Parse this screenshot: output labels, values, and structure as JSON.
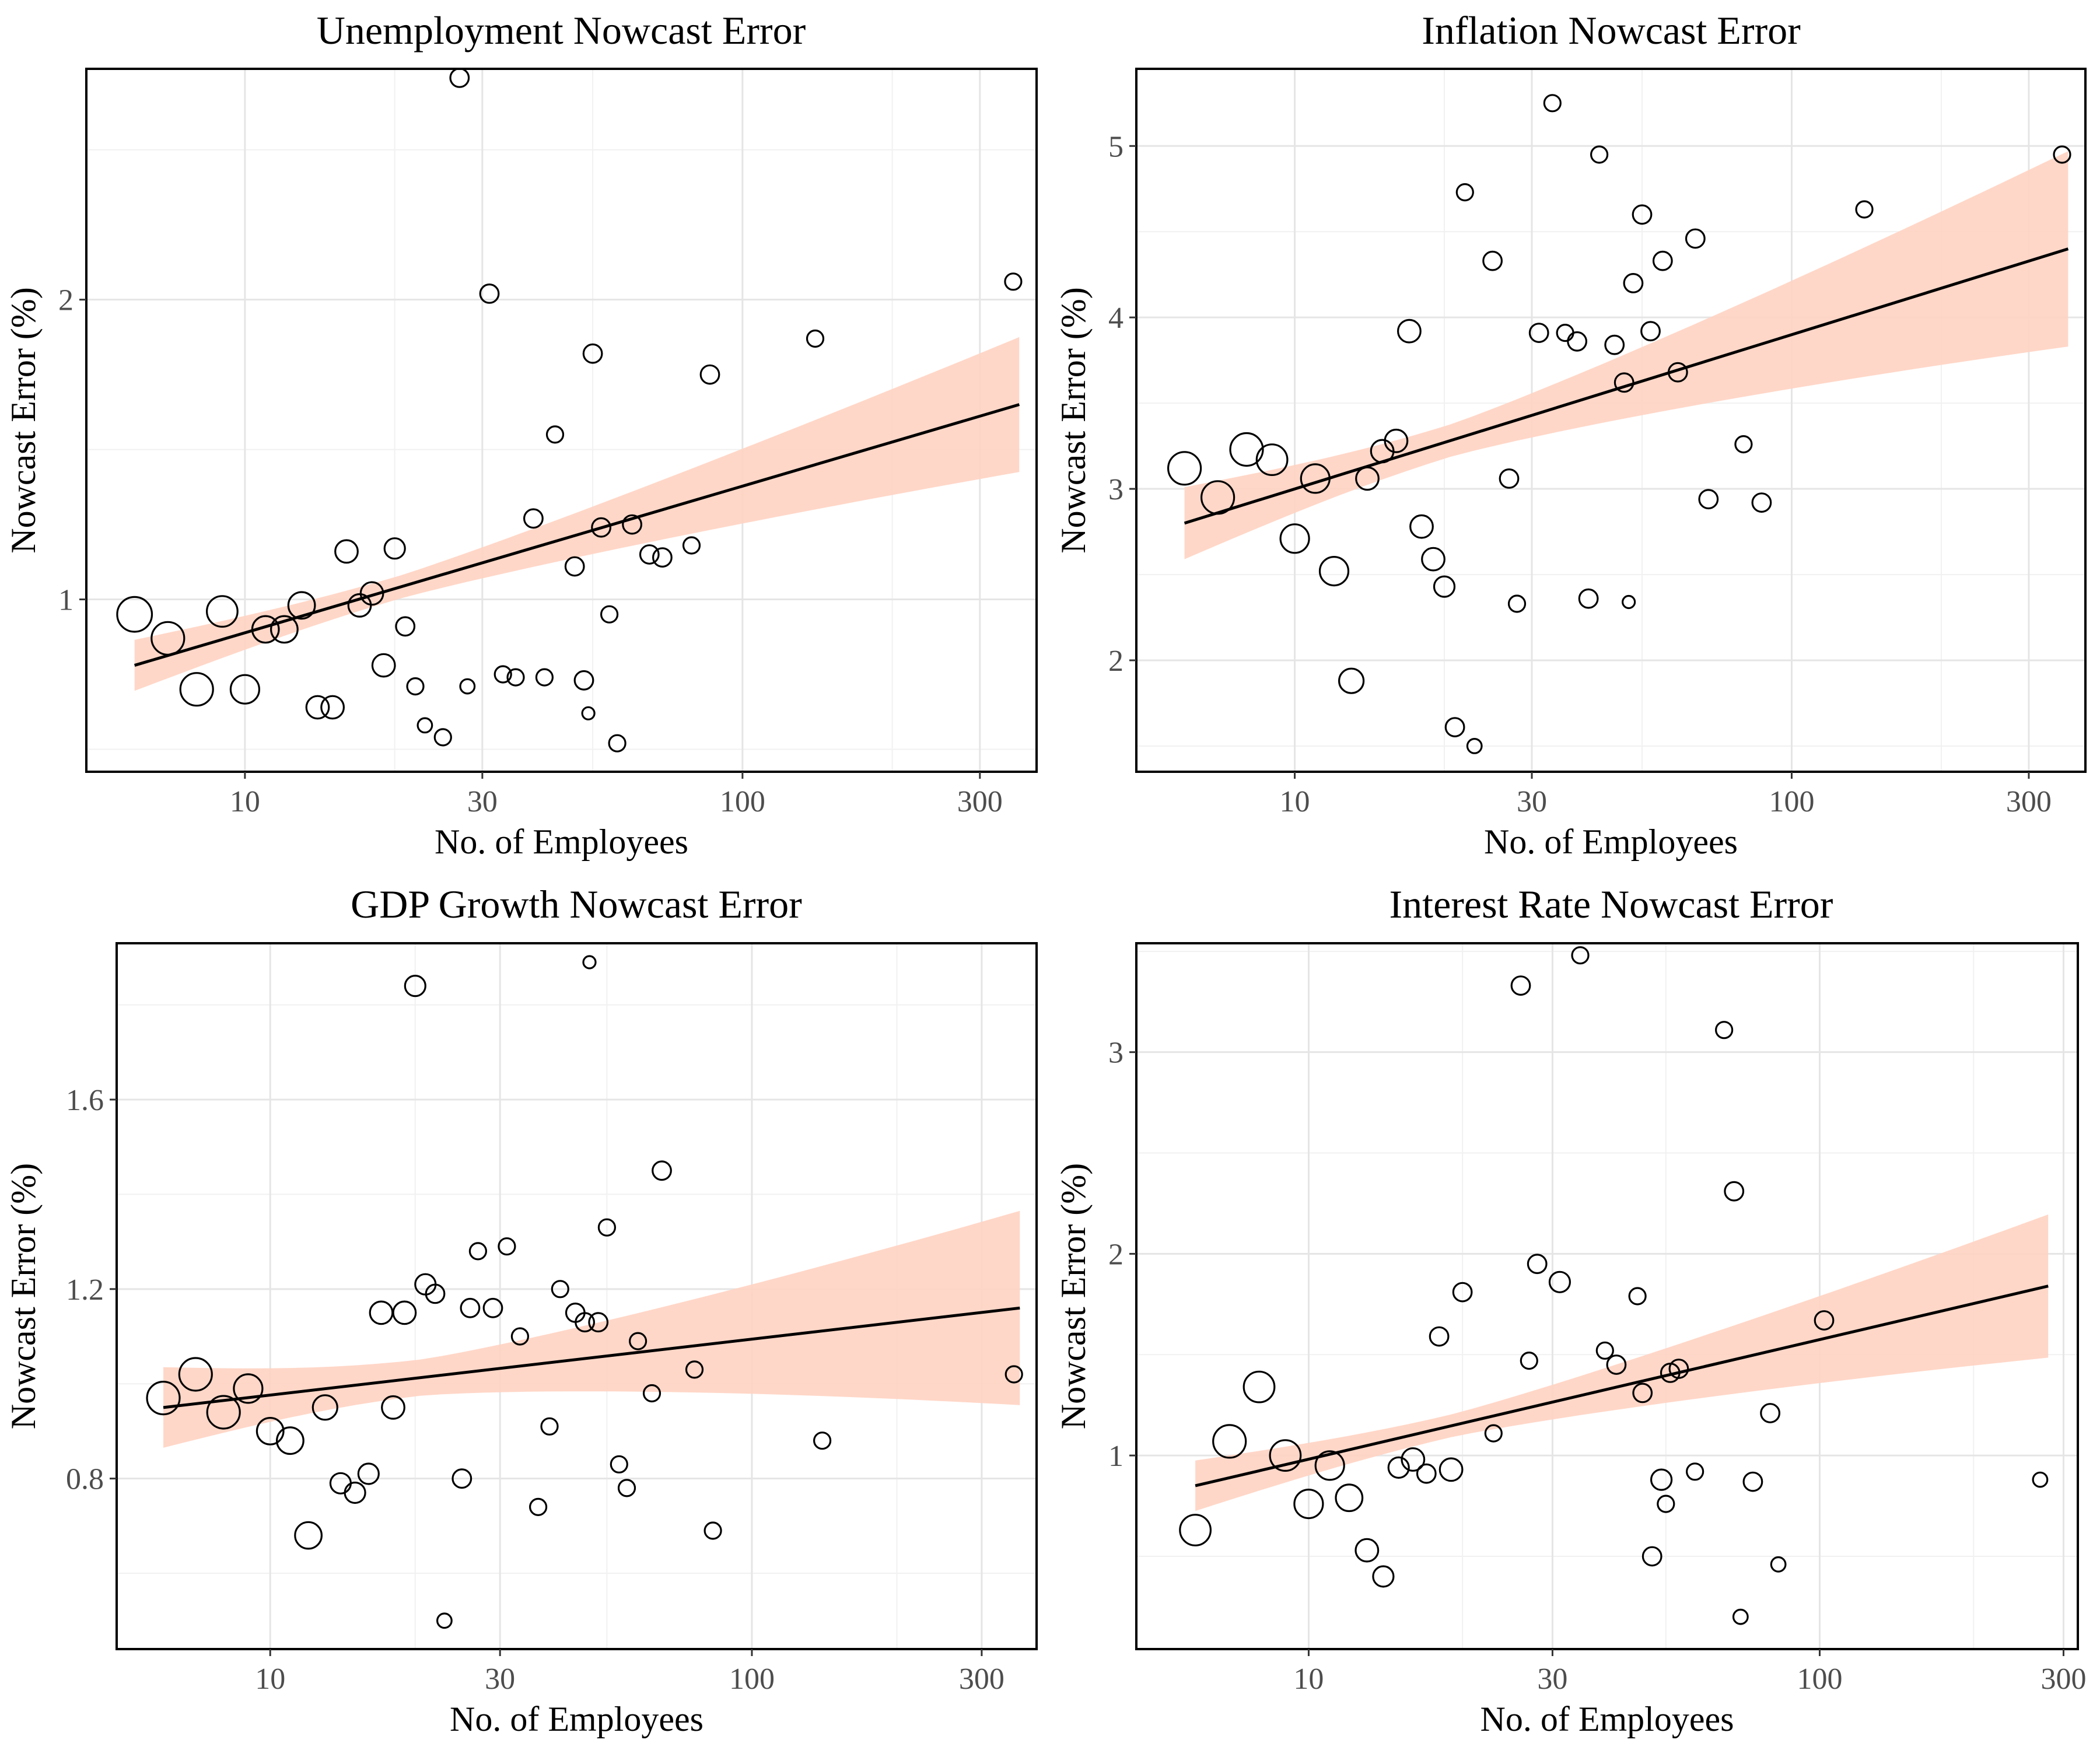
{
  "figure": {
    "log_minor_label": "log-x minor gridlines at 3, 20, 50, 200"
  },
  "colors": {
    "band": "#ffd3c2",
    "line": "#000000",
    "grid": "#e5e5e5",
    "tick_text": "#4d4d4d"
  },
  "chart_data": [
    {
      "type": "scatter",
      "title": "Unemployment Nowcast Error",
      "xlabel": "No. of Employees",
      "ylabel": "Nowcast Error (%)",
      "x_scale": "log10",
      "xlim": [
        4.8,
        390
      ],
      "ylim": [
        0.425,
        2.77
      ],
      "x_ticks": [
        10,
        30,
        100,
        300
      ],
      "x_tick_labels": [
        "10",
        "30",
        "100",
        "300"
      ],
      "y_ticks": [
        1,
        2
      ],
      "y_tick_labels": [
        "1",
        "2"
      ],
      "fit": {
        "x": [
          6,
          360
        ],
        "y": [
          0.78,
          1.65
        ],
        "ci_low": [
          0.69,
          1.43
        ],
        "ci_high": [
          0.86,
          1.88
        ]
      },
      "points": [
        {
          "x": 6,
          "y": 0.95,
          "size": 8.5
        },
        {
          "x": 7,
          "y": 0.87,
          "size": 8
        },
        {
          "x": 8,
          "y": 0.7,
          "size": 8
        },
        {
          "x": 9,
          "y": 0.96,
          "size": 7.5
        },
        {
          "x": 10,
          "y": 0.7,
          "size": 7
        },
        {
          "x": 11,
          "y": 0.9,
          "size": 6.5
        },
        {
          "x": 12,
          "y": 0.9,
          "size": 6.5
        },
        {
          "x": 13,
          "y": 0.98,
          "size": 6.5
        },
        {
          "x": 14,
          "y": 0.64,
          "size": 5.5
        },
        {
          "x": 15,
          "y": 0.64,
          "size": 5.5
        },
        {
          "x": 16,
          "y": 1.16,
          "size": 5.5
        },
        {
          "x": 17,
          "y": 0.98,
          "size": 5.5
        },
        {
          "x": 18,
          "y": 1.02,
          "size": 5.5
        },
        {
          "x": 19,
          "y": 0.78,
          "size": 5.5
        },
        {
          "x": 20,
          "y": 1.17,
          "size": 5
        },
        {
          "x": 21,
          "y": 0.91,
          "size": 4.5
        },
        {
          "x": 22,
          "y": 0.71,
          "size": 4
        },
        {
          "x": 23,
          "y": 0.58,
          "size": 3.5
        },
        {
          "x": 25,
          "y": 0.54,
          "size": 4
        },
        {
          "x": 27,
          "y": 2.74,
          "size": 4.5
        },
        {
          "x": 28,
          "y": 0.71,
          "size": 3.5
        },
        {
          "x": 31,
          "y": 2.02,
          "size": 4.5
        },
        {
          "x": 33,
          "y": 0.75,
          "size": 4
        },
        {
          "x": 35,
          "y": 0.74,
          "size": 4
        },
        {
          "x": 38,
          "y": 1.27,
          "size": 4.5
        },
        {
          "x": 40,
          "y": 0.74,
          "size": 4
        },
        {
          "x": 42,
          "y": 1.55,
          "size": 4
        },
        {
          "x": 46,
          "y": 1.11,
          "size": 4.5
        },
        {
          "x": 48,
          "y": 0.73,
          "size": 4.5
        },
        {
          "x": 49,
          "y": 0.62,
          "size": 3
        },
        {
          "x": 50,
          "y": 1.82,
          "size": 4.5
        },
        {
          "x": 52,
          "y": 1.24,
          "size": 4.5
        },
        {
          "x": 54,
          "y": 0.95,
          "size": 4
        },
        {
          "x": 56,
          "y": 0.52,
          "size": 4
        },
        {
          "x": 60,
          "y": 1.25,
          "size": 4.5
        },
        {
          "x": 65,
          "y": 1.15,
          "size": 4.5
        },
        {
          "x": 69,
          "y": 1.14,
          "size": 4.5
        },
        {
          "x": 79,
          "y": 1.18,
          "size": 4
        },
        {
          "x": 86,
          "y": 1.75,
          "size": 4.5
        },
        {
          "x": 140,
          "y": 1.87,
          "size": 4
        },
        {
          "x": 350,
          "y": 2.06,
          "size": 4
        }
      ]
    },
    {
      "type": "scatter",
      "title": "Inflation Nowcast Error",
      "xlabel": "No. of Employees",
      "ylabel": "Nowcast Error (%)",
      "x_scale": "log10",
      "xlim": [
        4.8,
        390
      ],
      "ylim": [
        1.35,
        5.45
      ],
      "x_ticks": [
        10,
        30,
        100,
        300
      ],
      "x_tick_labels": [
        "10",
        "30",
        "100",
        "300"
      ],
      "y_ticks": [
        2,
        3,
        4,
        5
      ],
      "y_tick_labels": [
        "2",
        "3",
        "4",
        "5"
      ],
      "fit": {
        "x": [
          6,
          360
        ],
        "y": [
          2.8,
          4.4
        ],
        "ci_low": [
          2.6,
          3.82
        ],
        "ci_high": [
          3.02,
          4.96
        ]
      },
      "points": [
        {
          "x": 6,
          "y": 3.12,
          "size": 8
        },
        {
          "x": 7,
          "y": 2.95,
          "size": 8
        },
        {
          "x": 8,
          "y": 3.23,
          "size": 8
        },
        {
          "x": 9,
          "y": 3.17,
          "size": 7.5
        },
        {
          "x": 10,
          "y": 2.71,
          "size": 7
        },
        {
          "x": 11,
          "y": 3.06,
          "size": 7
        },
        {
          "x": 12,
          "y": 2.52,
          "size": 7
        },
        {
          "x": 13,
          "y": 1.88,
          "size": 6
        },
        {
          "x": 14,
          "y": 3.06,
          "size": 5.5
        },
        {
          "x": 15,
          "y": 3.22,
          "size": 5.5
        },
        {
          "x": 16,
          "y": 3.28,
          "size": 5.5
        },
        {
          "x": 17,
          "y": 3.92,
          "size": 5.5
        },
        {
          "x": 18,
          "y": 2.78,
          "size": 5.5
        },
        {
          "x": 19,
          "y": 2.59,
          "size": 5.5
        },
        {
          "x": 20,
          "y": 2.43,
          "size": 5
        },
        {
          "x": 21,
          "y": 1.61,
          "size": 4.5
        },
        {
          "x": 22,
          "y": 4.73,
          "size": 4
        },
        {
          "x": 23,
          "y": 1.5,
          "size": 3.5
        },
        {
          "x": 25,
          "y": 4.33,
          "size": 4.5
        },
        {
          "x": 27,
          "y": 3.06,
          "size": 4.5
        },
        {
          "x": 28,
          "y": 2.33,
          "size": 4
        },
        {
          "x": 31,
          "y": 3.91,
          "size": 4.5
        },
        {
          "x": 33,
          "y": 5.25,
          "size": 4
        },
        {
          "x": 35,
          "y": 3.91,
          "size": 4
        },
        {
          "x": 37,
          "y": 3.86,
          "size": 4.5
        },
        {
          "x": 39,
          "y": 2.36,
          "size": 4.5
        },
        {
          "x": 41,
          "y": 4.95,
          "size": 4
        },
        {
          "x": 44,
          "y": 3.84,
          "size": 4.5
        },
        {
          "x": 46,
          "y": 3.62,
          "size": 4.5
        },
        {
          "x": 47,
          "y": 2.34,
          "size": 3
        },
        {
          "x": 48,
          "y": 4.2,
          "size": 4.5
        },
        {
          "x": 50,
          "y": 4.6,
          "size": 4.5
        },
        {
          "x": 52,
          "y": 3.92,
          "size": 4.5
        },
        {
          "x": 55,
          "y": 4.33,
          "size": 4.5
        },
        {
          "x": 59,
          "y": 3.68,
          "size": 4.5
        },
        {
          "x": 64,
          "y": 4.46,
          "size": 4.5
        },
        {
          "x": 68,
          "y": 2.94,
          "size": 4.5
        },
        {
          "x": 80,
          "y": 3.26,
          "size": 4
        },
        {
          "x": 87,
          "y": 2.92,
          "size": 4.5
        },
        {
          "x": 140,
          "y": 4.63,
          "size": 4
        },
        {
          "x": 350,
          "y": 4.95,
          "size": 4
        }
      ]
    },
    {
      "type": "scatter",
      "title": "GDP Growth Nowcast Error",
      "xlabel": "No. of Employees",
      "ylabel": "Nowcast Error (%)",
      "x_scale": "log10",
      "xlim": [
        4.8,
        390
      ],
      "ylim": [
        0.44,
        1.93
      ],
      "x_ticks": [
        10,
        30,
        100,
        300
      ],
      "x_tick_labels": [
        "10",
        "30",
        "100",
        "300"
      ],
      "y_ticks": [
        0.8,
        1.2,
        1.6
      ],
      "y_tick_labels": [
        "0.8",
        "1.2",
        "1.6"
      ],
      "fit": {
        "x": [
          6,
          360
        ],
        "y": [
          0.95,
          1.16
        ],
        "ci_low": [
          0.86,
          0.96
        ],
        "ci_high": [
          1.03,
          1.37
        ]
      },
      "points": [
        {
          "x": 6,
          "y": 0.97,
          "size": 8
        },
        {
          "x": 7,
          "y": 1.02,
          "size": 8
        },
        {
          "x": 8,
          "y": 0.94,
          "size": 8
        },
        {
          "x": 9,
          "y": 0.99,
          "size": 7
        },
        {
          "x": 10,
          "y": 0.9,
          "size": 6.5
        },
        {
          "x": 11,
          "y": 0.88,
          "size": 6.5
        },
        {
          "x": 12,
          "y": 0.68,
          "size": 6.5
        },
        {
          "x": 13,
          "y": 0.95,
          "size": 6
        },
        {
          "x": 14,
          "y": 0.79,
          "size": 5
        },
        {
          "x": 15,
          "y": 0.77,
          "size": 5
        },
        {
          "x": 16,
          "y": 0.81,
          "size": 5
        },
        {
          "x": 17,
          "y": 1.15,
          "size": 5.5
        },
        {
          "x": 18,
          "y": 0.95,
          "size": 5.5
        },
        {
          "x": 19,
          "y": 1.15,
          "size": 5.5
        },
        {
          "x": 20,
          "y": 1.84,
          "size": 5
        },
        {
          "x": 21,
          "y": 1.21,
          "size": 5
        },
        {
          "x": 22,
          "y": 1.19,
          "size": 4.5
        },
        {
          "x": 23,
          "y": 0.5,
          "size": 3.5
        },
        {
          "x": 25,
          "y": 0.8,
          "size": 4.5
        },
        {
          "x": 26,
          "y": 1.16,
          "size": 4.5
        },
        {
          "x": 27,
          "y": 1.28,
          "size": 4
        },
        {
          "x": 29,
          "y": 1.16,
          "size": 4.5
        },
        {
          "x": 31,
          "y": 1.29,
          "size": 4
        },
        {
          "x": 33,
          "y": 1.1,
          "size": 4
        },
        {
          "x": 36,
          "y": 0.74,
          "size": 4
        },
        {
          "x": 38,
          "y": 0.91,
          "size": 4
        },
        {
          "x": 40,
          "y": 1.2,
          "size": 4
        },
        {
          "x": 43,
          "y": 1.15,
          "size": 4.5
        },
        {
          "x": 45,
          "y": 1.13,
          "size": 4.5
        },
        {
          "x": 46,
          "y": 1.89,
          "size": 3
        },
        {
          "x": 48,
          "y": 1.13,
          "size": 4.5
        },
        {
          "x": 50,
          "y": 1.33,
          "size": 4
        },
        {
          "x": 53,
          "y": 0.83,
          "size": 4
        },
        {
          "x": 55,
          "y": 0.78,
          "size": 4
        },
        {
          "x": 58,
          "y": 1.09,
          "size": 4
        },
        {
          "x": 62,
          "y": 0.98,
          "size": 4
        },
        {
          "x": 65,
          "y": 1.45,
          "size": 4.5
        },
        {
          "x": 76,
          "y": 1.03,
          "size": 4
        },
        {
          "x": 83,
          "y": 0.69,
          "size": 4
        },
        {
          "x": 140,
          "y": 0.88,
          "size": 4
        },
        {
          "x": 350,
          "y": 1.02,
          "size": 4
        }
      ]
    },
    {
      "type": "scatter",
      "title": "Interest Rate Nowcast Error",
      "xlabel": "No. of Employees",
      "ylabel": "Nowcast Error (%)",
      "x_scale": "log10",
      "xlim": [
        4.6,
        320
      ],
      "ylim": [
        0.04,
        3.54
      ],
      "x_ticks": [
        10,
        30,
        100,
        300
      ],
      "x_tick_labels": [
        "10",
        "30",
        "100",
        "300"
      ],
      "y_ticks": [
        1,
        2,
        3
      ],
      "y_tick_labels": [
        "1",
        "2",
        "3"
      ],
      "fit": {
        "x": [
          6,
          280
        ],
        "y": [
          0.85,
          1.84
        ],
        "ci_low": [
          0.72,
          1.49
        ],
        "ci_high": [
          0.97,
          2.2
        ]
      },
      "points": [
        {
          "x": 6,
          "y": 0.63,
          "size": 7.5
        },
        {
          "x": 7,
          "y": 1.07,
          "size": 8
        },
        {
          "x": 8,
          "y": 1.34,
          "size": 7.5
        },
        {
          "x": 9,
          "y": 1.0,
          "size": 7.5
        },
        {
          "x": 10,
          "y": 0.76,
          "size": 7
        },
        {
          "x": 11,
          "y": 0.95,
          "size": 7
        },
        {
          "x": 12,
          "y": 0.79,
          "size": 6.5
        },
        {
          "x": 13,
          "y": 0.53,
          "size": 5.5
        },
        {
          "x": 14,
          "y": 0.4,
          "size": 5
        },
        {
          "x": 15,
          "y": 0.94,
          "size": 5
        },
        {
          "x": 16,
          "y": 0.98,
          "size": 5.5
        },
        {
          "x": 17,
          "y": 0.91,
          "size": 4.5
        },
        {
          "x": 18,
          "y": 1.59,
          "size": 4.5
        },
        {
          "x": 19,
          "y": 0.93,
          "size": 5.5
        },
        {
          "x": 20,
          "y": 1.81,
          "size": 4.5
        },
        {
          "x": 23,
          "y": 1.11,
          "size": 4
        },
        {
          "x": 26,
          "y": 3.33,
          "size": 4.5
        },
        {
          "x": 27,
          "y": 1.47,
          "size": 4
        },
        {
          "x": 28,
          "y": 1.95,
          "size": 4.5
        },
        {
          "x": 31,
          "y": 1.86,
          "size": 5
        },
        {
          "x": 34,
          "y": 3.48,
          "size": 4
        },
        {
          "x": 38,
          "y": 1.52,
          "size": 4
        },
        {
          "x": 40,
          "y": 1.45,
          "size": 4.5
        },
        {
          "x": 44,
          "y": 1.79,
          "size": 4
        },
        {
          "x": 45,
          "y": 1.31,
          "size": 4.5
        },
        {
          "x": 47,
          "y": 0.5,
          "size": 4.5
        },
        {
          "x": 49,
          "y": 0.88,
          "size": 5
        },
        {
          "x": 50,
          "y": 0.76,
          "size": 4
        },
        {
          "x": 51,
          "y": 1.41,
          "size": 4.5
        },
        {
          "x": 53,
          "y": 1.43,
          "size": 4.5
        },
        {
          "x": 57,
          "y": 0.92,
          "size": 4
        },
        {
          "x": 65,
          "y": 3.11,
          "size": 4
        },
        {
          "x": 68,
          "y": 2.31,
          "size": 4.5
        },
        {
          "x": 70,
          "y": 0.2,
          "size": 3.5
        },
        {
          "x": 74,
          "y": 0.87,
          "size": 4.5
        },
        {
          "x": 80,
          "y": 1.21,
          "size": 4.5
        },
        {
          "x": 83,
          "y": 0.46,
          "size": 3.5
        },
        {
          "x": 102,
          "y": 1.67,
          "size": 4.5
        },
        {
          "x": 270,
          "y": 0.88,
          "size": 3.5
        }
      ]
    }
  ]
}
